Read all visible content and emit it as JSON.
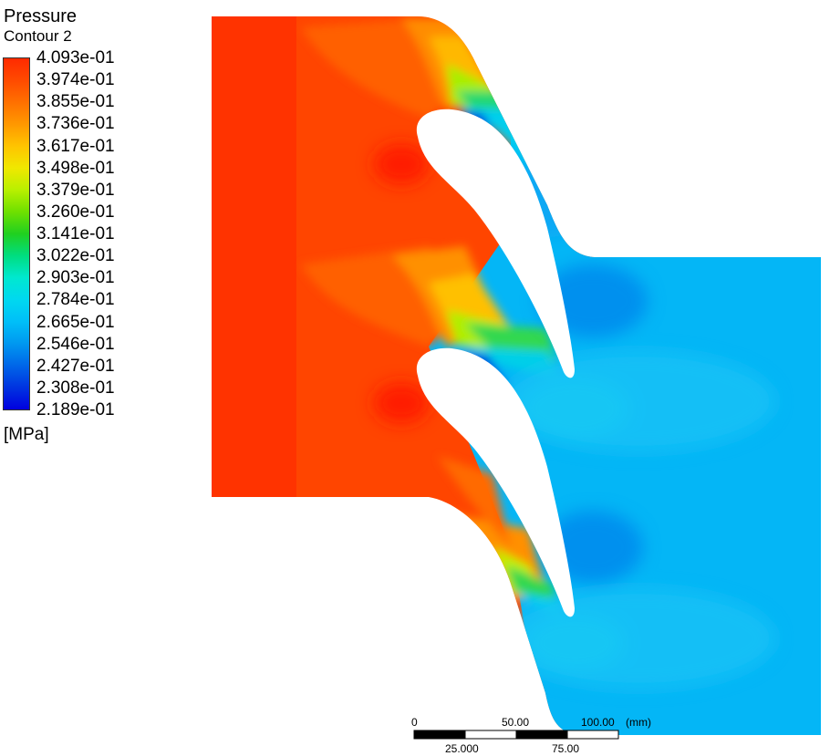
{
  "legend": {
    "title": "Pressure",
    "subtitle": "Contour 2",
    "unit": "[MPa]",
    "levels": [
      "4.093e-01",
      "3.974e-01",
      "3.855e-01",
      "3.736e-01",
      "3.617e-01",
      "3.498e-01",
      "3.379e-01",
      "3.260e-01",
      "3.141e-01",
      "3.022e-01",
      "2.903e-01",
      "2.784e-01",
      "2.665e-01",
      "2.546e-01",
      "2.427e-01",
      "2.308e-01",
      "2.189e-01"
    ],
    "colors": [
      "#ff2a00",
      "#ff4a00",
      "#ff7000",
      "#ff9800",
      "#ffc400",
      "#f0e800",
      "#b8f000",
      "#6ee000",
      "#20d020",
      "#00dd80",
      "#00e8d0",
      "#00d8f0",
      "#00bff8",
      "#0098f0",
      "#0066e8",
      "#0033e0",
      "#0000e0"
    ]
  },
  "scale_bar": {
    "top_labels": [
      "0",
      "50.00",
      "100.00",
      "(mm)"
    ],
    "bottom_labels": [
      "25.000",
      "75.00"
    ]
  }
}
